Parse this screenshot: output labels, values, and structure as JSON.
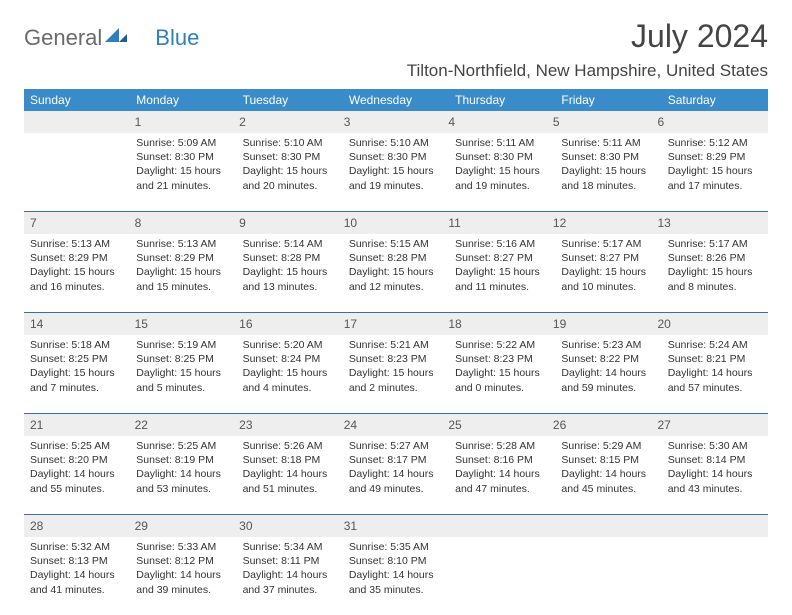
{
  "logo": {
    "word1": "General",
    "word2": "Blue",
    "accent_color": "#2f7fbf"
  },
  "header": {
    "month_title": "July 2024",
    "location": "Tilton-Northfield, New Hampshire, United States"
  },
  "colors": {
    "header_bg": "#3a8bc9",
    "header_fg": "#ffffff",
    "daynum_bg": "#eeeeee",
    "week_border": "#3a6ea5",
    "text": "#333333"
  },
  "days_of_week": [
    "Sunday",
    "Monday",
    "Tuesday",
    "Wednesday",
    "Thursday",
    "Friday",
    "Saturday"
  ],
  "weeks": [
    [
      {
        "n": "",
        "sunrise": "",
        "sunset": "",
        "daylight1": "",
        "daylight2": ""
      },
      {
        "n": "1",
        "sunrise": "Sunrise: 5:09 AM",
        "sunset": "Sunset: 8:30 PM",
        "daylight1": "Daylight: 15 hours",
        "daylight2": "and 21 minutes."
      },
      {
        "n": "2",
        "sunrise": "Sunrise: 5:10 AM",
        "sunset": "Sunset: 8:30 PM",
        "daylight1": "Daylight: 15 hours",
        "daylight2": "and 20 minutes."
      },
      {
        "n": "3",
        "sunrise": "Sunrise: 5:10 AM",
        "sunset": "Sunset: 8:30 PM",
        "daylight1": "Daylight: 15 hours",
        "daylight2": "and 19 minutes."
      },
      {
        "n": "4",
        "sunrise": "Sunrise: 5:11 AM",
        "sunset": "Sunset: 8:30 PM",
        "daylight1": "Daylight: 15 hours",
        "daylight2": "and 19 minutes."
      },
      {
        "n": "5",
        "sunrise": "Sunrise: 5:11 AM",
        "sunset": "Sunset: 8:30 PM",
        "daylight1": "Daylight: 15 hours",
        "daylight2": "and 18 minutes."
      },
      {
        "n": "6",
        "sunrise": "Sunrise: 5:12 AM",
        "sunset": "Sunset: 8:29 PM",
        "daylight1": "Daylight: 15 hours",
        "daylight2": "and 17 minutes."
      }
    ],
    [
      {
        "n": "7",
        "sunrise": "Sunrise: 5:13 AM",
        "sunset": "Sunset: 8:29 PM",
        "daylight1": "Daylight: 15 hours",
        "daylight2": "and 16 minutes."
      },
      {
        "n": "8",
        "sunrise": "Sunrise: 5:13 AM",
        "sunset": "Sunset: 8:29 PM",
        "daylight1": "Daylight: 15 hours",
        "daylight2": "and 15 minutes."
      },
      {
        "n": "9",
        "sunrise": "Sunrise: 5:14 AM",
        "sunset": "Sunset: 8:28 PM",
        "daylight1": "Daylight: 15 hours",
        "daylight2": "and 13 minutes."
      },
      {
        "n": "10",
        "sunrise": "Sunrise: 5:15 AM",
        "sunset": "Sunset: 8:28 PM",
        "daylight1": "Daylight: 15 hours",
        "daylight2": "and 12 minutes."
      },
      {
        "n": "11",
        "sunrise": "Sunrise: 5:16 AM",
        "sunset": "Sunset: 8:27 PM",
        "daylight1": "Daylight: 15 hours",
        "daylight2": "and 11 minutes."
      },
      {
        "n": "12",
        "sunrise": "Sunrise: 5:17 AM",
        "sunset": "Sunset: 8:27 PM",
        "daylight1": "Daylight: 15 hours",
        "daylight2": "and 10 minutes."
      },
      {
        "n": "13",
        "sunrise": "Sunrise: 5:17 AM",
        "sunset": "Sunset: 8:26 PM",
        "daylight1": "Daylight: 15 hours",
        "daylight2": "and 8 minutes."
      }
    ],
    [
      {
        "n": "14",
        "sunrise": "Sunrise: 5:18 AM",
        "sunset": "Sunset: 8:25 PM",
        "daylight1": "Daylight: 15 hours",
        "daylight2": "and 7 minutes."
      },
      {
        "n": "15",
        "sunrise": "Sunrise: 5:19 AM",
        "sunset": "Sunset: 8:25 PM",
        "daylight1": "Daylight: 15 hours",
        "daylight2": "and 5 minutes."
      },
      {
        "n": "16",
        "sunrise": "Sunrise: 5:20 AM",
        "sunset": "Sunset: 8:24 PM",
        "daylight1": "Daylight: 15 hours",
        "daylight2": "and 4 minutes."
      },
      {
        "n": "17",
        "sunrise": "Sunrise: 5:21 AM",
        "sunset": "Sunset: 8:23 PM",
        "daylight1": "Daylight: 15 hours",
        "daylight2": "and 2 minutes."
      },
      {
        "n": "18",
        "sunrise": "Sunrise: 5:22 AM",
        "sunset": "Sunset: 8:23 PM",
        "daylight1": "Daylight: 15 hours",
        "daylight2": "and 0 minutes."
      },
      {
        "n": "19",
        "sunrise": "Sunrise: 5:23 AM",
        "sunset": "Sunset: 8:22 PM",
        "daylight1": "Daylight: 14 hours",
        "daylight2": "and 59 minutes."
      },
      {
        "n": "20",
        "sunrise": "Sunrise: 5:24 AM",
        "sunset": "Sunset: 8:21 PM",
        "daylight1": "Daylight: 14 hours",
        "daylight2": "and 57 minutes."
      }
    ],
    [
      {
        "n": "21",
        "sunrise": "Sunrise: 5:25 AM",
        "sunset": "Sunset: 8:20 PM",
        "daylight1": "Daylight: 14 hours",
        "daylight2": "and 55 minutes."
      },
      {
        "n": "22",
        "sunrise": "Sunrise: 5:25 AM",
        "sunset": "Sunset: 8:19 PM",
        "daylight1": "Daylight: 14 hours",
        "daylight2": "and 53 minutes."
      },
      {
        "n": "23",
        "sunrise": "Sunrise: 5:26 AM",
        "sunset": "Sunset: 8:18 PM",
        "daylight1": "Daylight: 14 hours",
        "daylight2": "and 51 minutes."
      },
      {
        "n": "24",
        "sunrise": "Sunrise: 5:27 AM",
        "sunset": "Sunset: 8:17 PM",
        "daylight1": "Daylight: 14 hours",
        "daylight2": "and 49 minutes."
      },
      {
        "n": "25",
        "sunrise": "Sunrise: 5:28 AM",
        "sunset": "Sunset: 8:16 PM",
        "daylight1": "Daylight: 14 hours",
        "daylight2": "and 47 minutes."
      },
      {
        "n": "26",
        "sunrise": "Sunrise: 5:29 AM",
        "sunset": "Sunset: 8:15 PM",
        "daylight1": "Daylight: 14 hours",
        "daylight2": "and 45 minutes."
      },
      {
        "n": "27",
        "sunrise": "Sunrise: 5:30 AM",
        "sunset": "Sunset: 8:14 PM",
        "daylight1": "Daylight: 14 hours",
        "daylight2": "and 43 minutes."
      }
    ],
    [
      {
        "n": "28",
        "sunrise": "Sunrise: 5:32 AM",
        "sunset": "Sunset: 8:13 PM",
        "daylight1": "Daylight: 14 hours",
        "daylight2": "and 41 minutes."
      },
      {
        "n": "29",
        "sunrise": "Sunrise: 5:33 AM",
        "sunset": "Sunset: 8:12 PM",
        "daylight1": "Daylight: 14 hours",
        "daylight2": "and 39 minutes."
      },
      {
        "n": "30",
        "sunrise": "Sunrise: 5:34 AM",
        "sunset": "Sunset: 8:11 PM",
        "daylight1": "Daylight: 14 hours",
        "daylight2": "and 37 minutes."
      },
      {
        "n": "31",
        "sunrise": "Sunrise: 5:35 AM",
        "sunset": "Sunset: 8:10 PM",
        "daylight1": "Daylight: 14 hours",
        "daylight2": "and 35 minutes."
      },
      {
        "n": "",
        "sunrise": "",
        "sunset": "",
        "daylight1": "",
        "daylight2": ""
      },
      {
        "n": "",
        "sunrise": "",
        "sunset": "",
        "daylight1": "",
        "daylight2": ""
      },
      {
        "n": "",
        "sunrise": "",
        "sunset": "",
        "daylight1": "",
        "daylight2": ""
      }
    ]
  ]
}
